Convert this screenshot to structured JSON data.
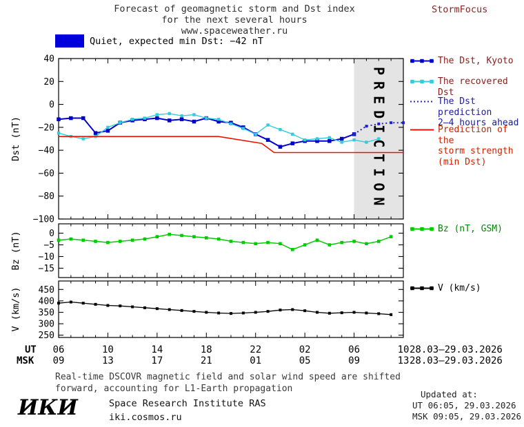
{
  "header": {
    "title_lines": [
      "Forecast of geomagnetic storm and Dst index",
      "for the next several hours",
      "www.spaceweather.ru"
    ],
    "brand": "StormFocus",
    "brand_color": "#8b1f1f"
  },
  "status": {
    "swatch_color": "#0000dd",
    "label": "Quiet, expected min Dst: −42 nT"
  },
  "prediction_watermark": "PREDICTION",
  "chart_data": [
    {
      "type": "line",
      "ylabel": "Dst (nT)",
      "ylim": [
        -100,
        40
      ],
      "yticks": [
        40,
        20,
        0,
        -20,
        -40,
        -60,
        -80,
        -100
      ],
      "xlim": [
        0,
        28
      ],
      "prediction_region": {
        "x_start": 24,
        "x_end": 28
      },
      "series": [
        {
          "name": "The Dst, Kyoto",
          "color": "#0000cc",
          "marker": "square",
          "style": "solid",
          "lw": 2,
          "ms": 5.5,
          "x": [
            0,
            1,
            2,
            3,
            4,
            5,
            6,
            7,
            8,
            9,
            10,
            11,
            12,
            13,
            14,
            15,
            16,
            17,
            18,
            19,
            20,
            21,
            22,
            23,
            24
          ],
          "values": [
            -13,
            -12,
            -12,
            -25,
            -23,
            -16,
            -14,
            -13,
            -12,
            -14,
            -13,
            -15,
            -12,
            -15,
            -16,
            -20,
            -26,
            -31,
            -37,
            -34,
            -32,
            -32,
            -32,
            -30,
            -26
          ]
        },
        {
          "name": "The recovered Dst",
          "color": "#33ccdd",
          "marker": "square",
          "style": "solid",
          "lw": 1.4,
          "ms": 4.4,
          "x": [
            0,
            1,
            2,
            3,
            4,
            5,
            6,
            7,
            8,
            9,
            10,
            11,
            12,
            13,
            14,
            15,
            16,
            17,
            18,
            19,
            20,
            21,
            22,
            23,
            24,
            25,
            26
          ],
          "values": [
            -25,
            -28,
            -30,
            -28,
            -20,
            -16,
            -13,
            -12,
            -9,
            -8,
            -10,
            -9,
            -12,
            -13,
            -17,
            -21,
            -26,
            -18,
            -22,
            -26,
            -31,
            -30,
            -29,
            -33,
            -31,
            -33,
            -30
          ]
        },
        {
          "name": "The Dst prediction 2–4 hours ahead",
          "color": "#2222cc",
          "marker": "square",
          "style": "dotted",
          "lw": 2,
          "ms": 4,
          "x": [
            24,
            25,
            26,
            27,
            28
          ],
          "values": [
            -26,
            -19,
            -17,
            -16,
            -16
          ]
        },
        {
          "name": "Prediction of the storm strength (min Dst)",
          "color": "#ee1100",
          "marker": "none",
          "style": "solid",
          "lw": 1.6,
          "x": [
            0,
            13,
            16.5,
            17.5,
            28
          ],
          "values": [
            -28,
            -28,
            -34,
            -42,
            -42
          ]
        }
      ]
    },
    {
      "type": "line",
      "ylabel": "Bz (nT)",
      "ylim": [
        -19,
        4
      ],
      "yticks": [
        0,
        -5,
        -10,
        -15
      ],
      "xlim": [
        0,
        28
      ],
      "series": [
        {
          "name": "Bz (nT, GSM)",
          "color": "#00cc00",
          "marker": "square",
          "style": "solid",
          "lw": 1.5,
          "ms": 4.6,
          "x": [
            0,
            1,
            2,
            3,
            4,
            5,
            6,
            7,
            8,
            9,
            10,
            11,
            12,
            13,
            14,
            15,
            16,
            17,
            18,
            19,
            20,
            21,
            22,
            23,
            24,
            25,
            26,
            27
          ],
          "values": [
            -3,
            -2.5,
            -3,
            -3.5,
            -4,
            -3.5,
            -3,
            -2.5,
            -1.5,
            -0.5,
            -1,
            -1.5,
            -2,
            -2.5,
            -3.5,
            -4,
            -4.5,
            -4,
            -4.5,
            -7,
            -5,
            -3,
            -5,
            -4,
            -3.5,
            -4.5,
            -3.5,
            -1.5
          ]
        }
      ]
    },
    {
      "type": "line",
      "ylabel": "V (km/s)",
      "ylim": [
        240,
        487
      ],
      "yticks": [
        450,
        400,
        350,
        300,
        250
      ],
      "xlim": [
        0,
        28
      ],
      "series": [
        {
          "name": "V (km/s)",
          "color": "#000000",
          "marker": "square",
          "style": "solid",
          "lw": 1.3,
          "ms": 4,
          "x": [
            0,
            1,
            2,
            3,
            4,
            5,
            6,
            7,
            8,
            9,
            10,
            11,
            12,
            13,
            14,
            15,
            16,
            17,
            18,
            19,
            20,
            21,
            22,
            23,
            24,
            25,
            26,
            27
          ],
          "values": [
            390,
            395,
            390,
            385,
            380,
            378,
            374,
            370,
            366,
            362,
            358,
            354,
            350,
            347,
            345,
            347,
            350,
            354,
            360,
            362,
            357,
            350,
            346,
            348,
            350,
            347,
            344,
            340
          ]
        }
      ]
    }
  ],
  "xaxis": {
    "ut_label": "UT",
    "msk_label": "MSK",
    "tick_hours": [
      0,
      4,
      8,
      12,
      16,
      20,
      24,
      28
    ],
    "ut_ticks": [
      "06",
      "10",
      "14",
      "18",
      "22",
      "02",
      "06",
      "10"
    ],
    "msk_ticks": [
      "09",
      "13",
      "17",
      "21",
      "01",
      "05",
      "09",
      "13"
    ],
    "ut_date": "28.03–29.03.2026",
    "msk_date": "28.03–29.03.2026"
  },
  "legend": {
    "items": [
      {
        "label": "The Dst, Kyoto",
        "color": "#0000cc",
        "text_color": "#8b1a1a",
        "marker": "square",
        "style": "solid"
      },
      {
        "label": "The recovered Dst",
        "color": "#33ccdd",
        "text_color": "#8b1a1a",
        "marker": "square",
        "style": "solid"
      },
      {
        "label": "The Dst prediction\n2–4 hours ahead",
        "color": "#2222cc",
        "text_color": "#1a1a99",
        "marker": "none",
        "style": "dotted"
      },
      {
        "label": "Prediction of the\nstorm strength\n(min Dst)",
        "color": "#ee1100",
        "text_color": "#cc2200",
        "marker": "none",
        "style": "solid"
      },
      {
        "label": "Bz (nT, GSM)",
        "color": "#00cc00",
        "text_color": "#008800",
        "marker": "square",
        "style": "solid"
      },
      {
        "label": "V (km/s)",
        "color": "#000000",
        "text_color": "#000000",
        "marker": "square",
        "style": "solid"
      }
    ]
  },
  "footer": {
    "note": "Real-time DSCOVR magnetic field and solar wind speed are shifted\nforward, accounting for L1-Earth propagation",
    "updated_label": "Updated at:",
    "updated_ut": "UT  06:05, 29.03.2026",
    "updated_msk": "MSK 09:05, 29.03.2026",
    "logo": "ИКИ",
    "institute": "Space Research Institute RAS",
    "site": "iki.cosmos.ru"
  }
}
